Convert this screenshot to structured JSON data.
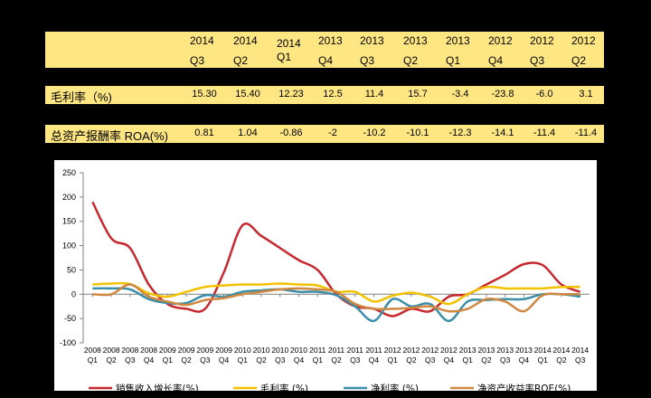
{
  "table": {
    "headers": [
      {
        "year": "2014",
        "quarter": "Q3"
      },
      {
        "year": "2014",
        "quarter": "Q2"
      },
      {
        "year": "2014",
        "quarter": "Q1"
      },
      {
        "year": "2013",
        "quarter": "Q4"
      },
      {
        "year": "2013",
        "quarter": "Q3"
      },
      {
        "year": "2013",
        "quarter": "Q2"
      },
      {
        "year": "2013",
        "quarter": "Q1"
      },
      {
        "year": "2012",
        "quarter": "Q4"
      },
      {
        "year": "2012",
        "quarter": "Q3"
      },
      {
        "year": "2012",
        "quarter": "Q2"
      }
    ],
    "rows": [
      {
        "label": "毛利率（%)",
        "values": [
          "15.30",
          "15.40",
          "12.23",
          "12.5",
          "11.4",
          "15.7",
          "-3.4",
          "-23.8",
          "-6.0",
          "3.1"
        ]
      },
      {
        "label": "总资产报酬率 ROA(%)",
        "values": [
          "0.81",
          "1.04",
          "-0.86",
          "-2",
          "-10.2",
          "-10.1",
          "-12.3",
          "-14.1",
          "-11.4",
          "-11.4"
        ]
      }
    ]
  },
  "chart_data": {
    "type": "line",
    "x_years": [
      "2008",
      "2008",
      "2008",
      "2008",
      "2009",
      "2009",
      "2009",
      "2009",
      "2010",
      "2010",
      "2010",
      "2010",
      "2011",
      "2011",
      "2011",
      "2011",
      "2012",
      "2012",
      "2012",
      "2012",
      "2013",
      "2013",
      "2013",
      "2013",
      "2014",
      "2014",
      "2014"
    ],
    "x_quarters": [
      "Q1",
      "Q2",
      "Q3",
      "Q4",
      "Q1",
      "Q2",
      "Q3",
      "Q4",
      "Q1",
      "Q2",
      "Q3",
      "Q4",
      "Q1",
      "Q2",
      "Q3",
      "Q4",
      "Q1",
      "Q2",
      "Q3",
      "Q4",
      "Q1",
      "Q2",
      "Q3",
      "Q4",
      "Q1",
      "Q2",
      "Q3"
    ],
    "ylim": [
      -100,
      250
    ],
    "yticks": [
      "250",
      "200",
      "150",
      "100",
      "50",
      "0",
      "-50",
      "-100"
    ],
    "grid": false,
    "legend_position": "bottom",
    "series": [
      {
        "name": "销售收入增长率(%)",
        "color": "#C8282D",
        "values": [
          190,
          115,
          95,
          20,
          -20,
          -30,
          -30,
          45,
          142,
          120,
          95,
          70,
          50,
          0,
          -25,
          -30,
          -45,
          -30,
          -35,
          -5,
          0,
          20,
          40,
          62,
          60,
          20,
          5
        ]
      },
      {
        "name": "毛利率 (%)",
        "color": "#F2C200",
        "values": [
          20,
          22,
          21,
          2,
          -5,
          5,
          15,
          18,
          20,
          20,
          22,
          20,
          18,
          5,
          5,
          -15,
          -3,
          3,
          -5,
          -20,
          0,
          15,
          12,
          12,
          12,
          15,
          15
        ]
      },
      {
        "name": "净利率 (%)",
        "color": "#3A8EA8",
        "values": [
          12,
          12,
          10,
          -10,
          -18,
          -18,
          -2,
          -5,
          5,
          8,
          10,
          5,
          5,
          -2,
          -25,
          -55,
          -10,
          -25,
          -20,
          -55,
          -15,
          -12,
          -10,
          -10,
          0,
          0,
          -5
        ]
      },
      {
        "name": "净资产收益率ROE(%)",
        "color": "#D08840",
        "values": [
          0,
          0,
          20,
          -5,
          -15,
          -22,
          -12,
          -8,
          0,
          5,
          10,
          12,
          10,
          5,
          -20,
          -30,
          -30,
          -28,
          -25,
          -35,
          -30,
          -10,
          -15,
          -35,
          -2,
          0,
          0
        ]
      }
    ]
  }
}
